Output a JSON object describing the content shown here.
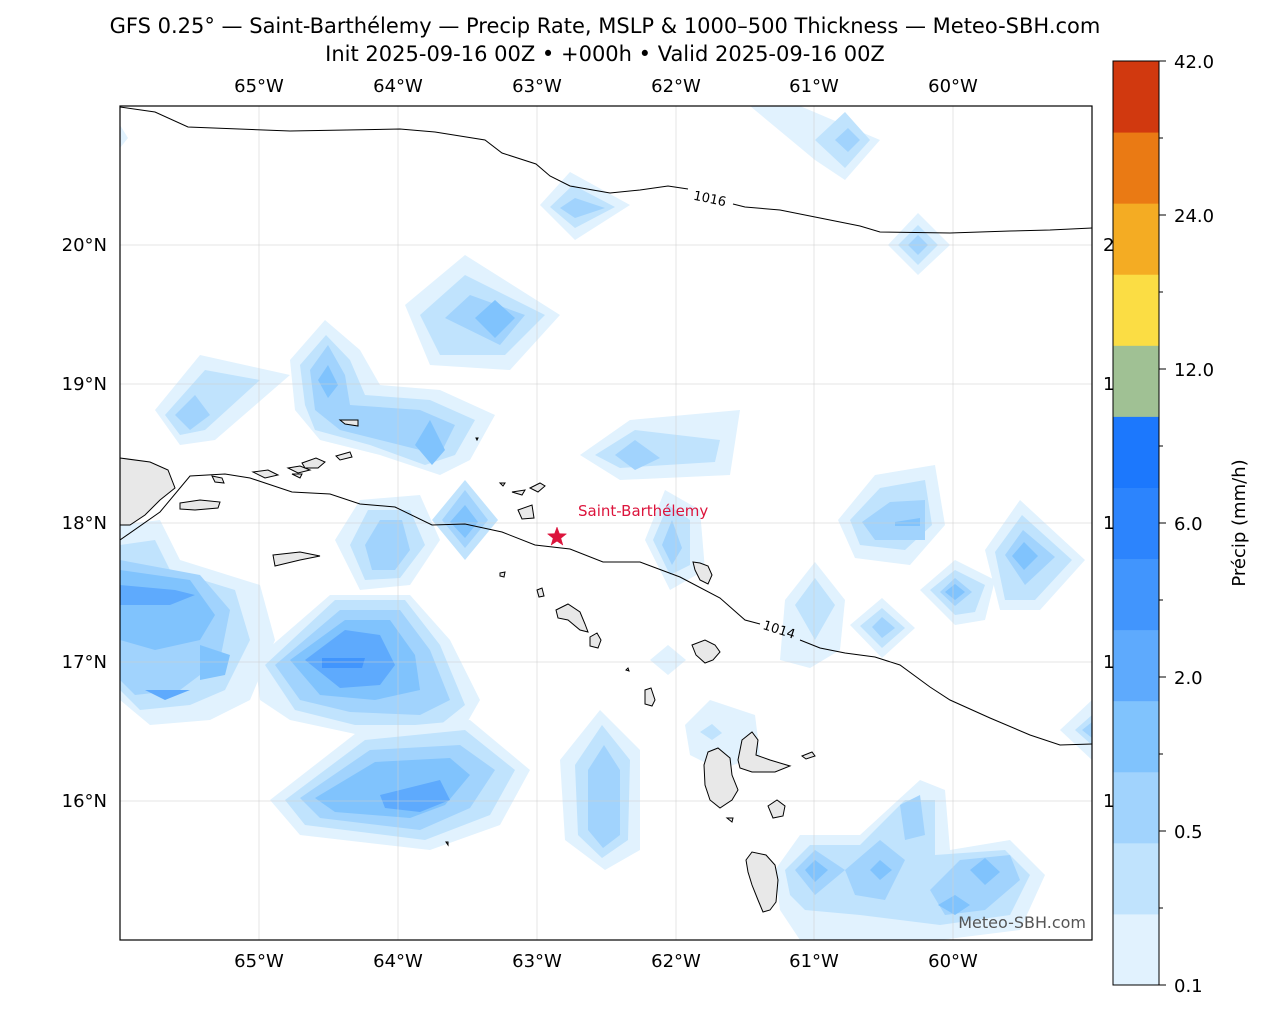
{
  "title": {
    "line1": "GFS 0.25° — Saint-Barthélemy — Precip Rate, MSLP & 1000–500 Thickness — Meteo-SBH.com",
    "line2": "Init 2025-09-16 00Z • +000h • Valid 2025-09-16 00Z"
  },
  "map": {
    "lon_labels": [
      "65°W",
      "64°W",
      "63°W",
      "62°W",
      "61°W",
      "60°W"
    ],
    "lat_labels": [
      "20°N",
      "19°N",
      "18°N",
      "17°N",
      "16°N"
    ],
    "isobar_labels": [
      "1016",
      "1014"
    ],
    "marker_label": "Saint-Barthélemy",
    "watermark": "Meteo-SBH.com",
    "marker_color": "#dc143c"
  },
  "colorbar": {
    "label": "Précip (mm/h)",
    "tick_labels": [
      "42.0",
      "24.0",
      "12.0",
      "6.0",
      "2.0",
      "0.5",
      "0.1"
    ],
    "colors_bottom_to_top": [
      "#e1f2fe",
      "#c0e3fd",
      "#a1d3fd",
      "#80c3fd",
      "#5eaafd",
      "#4195fd",
      "#2c84fd",
      "#1c78fd",
      "#a0c194",
      "#fbdd44",
      "#f4ac23",
      "#ea7a14",
      "#d1390f"
    ]
  }
}
